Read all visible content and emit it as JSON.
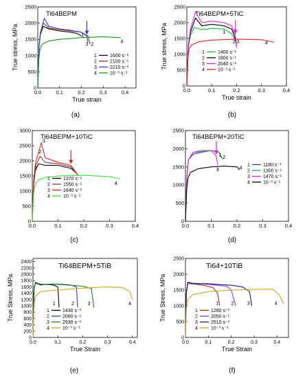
{
  "chart_data": [
    {
      "panel_label": "(a)",
      "type": "line",
      "title": "Ti64BEPM",
      "xlabel": "True strain",
      "ylabel": "True stress, MPa",
      "xlim": [
        0,
        0.45
      ],
      "ylim": [
        0,
        2500
      ],
      "xticks": [
        "0.0",
        "0.1",
        "0.2",
        "0.3",
        "0.4"
      ],
      "yticks": [
        "0",
        "500",
        "1000",
        "1500",
        "2000",
        "2500"
      ],
      "legend_position": "center-right",
      "arrow_color": "#2a3fd6",
      "series": [
        {
          "id": "1",
          "name": "1600 s⁻¹",
          "color": "#000000",
          "x": [
            0,
            0.006,
            0.012,
            0.025,
            0.05,
            0.1,
            0.15,
            0.18,
            0.2
          ],
          "y": [
            0,
            1300,
            1650,
            1900,
            1820,
            1760,
            1720,
            1680,
            1600
          ]
        },
        {
          "id": "2",
          "name": "2100 s⁻¹",
          "color": "#8b3a1a",
          "x": [
            0,
            0.006,
            0.012,
            0.025,
            0.05,
            0.1,
            0.15,
            0.2,
            0.23,
            0.24
          ],
          "y": [
            0,
            1300,
            1700,
            2000,
            1850,
            1800,
            1760,
            1720,
            1600,
            1350
          ]
        },
        {
          "id": "3",
          "name": "2210 s⁻¹",
          "color": "#2a3fd6",
          "x": [
            0,
            0.006,
            0.012,
            0.03,
            0.05,
            0.1,
            0.15,
            0.2,
            0.225,
            0.23
          ],
          "y": [
            0,
            1300,
            1700,
            2150,
            1900,
            1820,
            1780,
            1720,
            1600,
            1400
          ]
        },
        {
          "id": "4",
          "name": "10⁻³ s⁻¹",
          "color": "#1a9a1a",
          "x": [
            0,
            0.005,
            0.01,
            0.02,
            0.05,
            0.1,
            0.2,
            0.3,
            0.38
          ],
          "y": [
            0,
            900,
            1200,
            1350,
            1450,
            1500,
            1550,
            1580,
            1550
          ]
        }
      ],
      "labels": [
        {
          "text": "1",
          "x": 0.205,
          "y": 1580
        },
        {
          "text": "3",
          "x": 0.225,
          "y": 1300
        },
        {
          "text": "2",
          "x": 0.25,
          "y": 1300
        },
        {
          "text": "4",
          "x": 0.385,
          "y": 1390
        }
      ]
    },
    {
      "panel_label": "(b)",
      "type": "line",
      "title": "Ti64BEPM+5TiC",
      "xlabel": "True strain",
      "ylabel": "True stress, MPa",
      "xlim": [
        0,
        0.4
      ],
      "ylim": [
        0,
        2500
      ],
      "xticks": [
        "0.0",
        "0.1",
        "0.2",
        "0.3",
        "0.4"
      ],
      "yticks": [
        "0",
        "500",
        "1000",
        "1500",
        "2000",
        "2500"
      ],
      "legend_position": "bottom-left",
      "arrow_color": "#e020e0",
      "series": [
        {
          "id": "1",
          "name": "1400 s⁻¹",
          "color": "#10c030",
          "x": [
            0,
            0.006,
            0.015,
            0.03,
            0.06,
            0.1,
            0.15,
            0.18,
            0.19
          ],
          "y": [
            0,
            1200,
            1600,
            1850,
            1780,
            1820,
            1800,
            1650,
            1500
          ]
        },
        {
          "id": "2",
          "name": "1800 s⁻¹",
          "color": "#000000",
          "x": [
            0,
            0.006,
            0.015,
            0.035,
            0.06,
            0.1,
            0.15,
            0.18,
            0.19,
            0.2
          ],
          "y": [
            0,
            1300,
            1700,
            2150,
            1900,
            1950,
            1900,
            1800,
            1600,
            1300
          ]
        },
        {
          "id": "3",
          "name": "2040 s⁻¹",
          "color": "#e020e0",
          "x": [
            0,
            0.006,
            0.015,
            0.035,
            0.06,
            0.1,
            0.15,
            0.18,
            0.195,
            0.2
          ],
          "y": [
            0,
            1300,
            1800,
            2350,
            2000,
            2050,
            2000,
            1900,
            1600,
            1200
          ]
        },
        {
          "id": "4",
          "name": "10⁻³ s⁻¹",
          "color": "#e02020",
          "x": [
            0,
            0.005,
            0.01,
            0.02,
            0.05,
            0.1,
            0.2,
            0.3,
            0.35
          ],
          "y": [
            0,
            900,
            1200,
            1300,
            1400,
            1450,
            1480,
            1460,
            1380
          ]
        }
      ],
      "labels": [
        {
          "text": "1",
          "x": 0.15,
          "y": 1650
        },
        {
          "text": "2",
          "x": 0.19,
          "y": 1350
        },
        {
          "text": "3",
          "x": 0.205,
          "y": 1350
        },
        {
          "text": "4",
          "x": 0.32,
          "y": 1310
        }
      ]
    },
    {
      "panel_label": "(c)",
      "type": "line",
      "title": "Ti64BEPM+10TiC",
      "xlabel": "",
      "ylabel": "",
      "xlim": [
        0,
        0.4
      ],
      "ylim": [
        0,
        3000
      ],
      "xticks": [
        "0.0",
        "0.1",
        "0.2",
        "0.3",
        "0.4"
      ],
      "yticks": [
        "0",
        "500",
        "1000",
        "1500",
        "2000",
        "2500",
        "3000"
      ],
      "legend_position": "bottom-left",
      "arrow_color": "#e02020",
      "series": [
        {
          "id": "1",
          "name": "1370 s⁻¹",
          "color": "#000000",
          "x": [
            0,
            0.005,
            0.012,
            0.025,
            0.05,
            0.1,
            0.15,
            0.17
          ],
          "y": [
            0,
            1200,
            1700,
            1900,
            1850,
            1850,
            1750,
            1600
          ]
        },
        {
          "id": "2",
          "name": "1550 s⁻¹",
          "color": "#8b4030",
          "x": [
            0,
            0.005,
            0.012,
            0.03,
            0.05,
            0.1,
            0.15,
            0.175
          ],
          "y": [
            0,
            1300,
            1800,
            2150,
            1950,
            1900,
            1800,
            1550
          ]
        },
        {
          "id": "3",
          "name": "1640 s⁻¹",
          "color": "#e02020",
          "x": [
            0,
            0.005,
            0.012,
            0.035,
            0.05,
            0.1,
            0.15,
            0.18
          ],
          "y": [
            0,
            1300,
            1900,
            2600,
            2100,
            1950,
            1850,
            1500
          ]
        },
        {
          "id": "4",
          "name": "10⁻³ s⁻¹",
          "color": "#30e030",
          "x": [
            0,
            0.005,
            0.01,
            0.02,
            0.05,
            0.1,
            0.2,
            0.3,
            0.34
          ],
          "y": [
            0,
            900,
            1200,
            1350,
            1450,
            1500,
            1520,
            1480,
            1400
          ]
        }
      ],
      "labels": [
        {
          "text": "1",
          "x": 0.015,
          "y": 1700
        },
        {
          "text": "2",
          "x": 0.03,
          "y": 2250
        },
        {
          "text": "3",
          "x": 0.045,
          "y": 2600
        },
        {
          "text": "4",
          "x": 0.325,
          "y": 1200
        }
      ]
    },
    {
      "panel_label": "(d)",
      "type": "line",
      "title": "Ti64BEPM+20TiC",
      "xlabel": "",
      "ylabel": "",
      "xlim": [
        0,
        0.4
      ],
      "ylim": [
        0,
        2500
      ],
      "xticks": [
        "0.0",
        "0.1",
        "0.2",
        "0.3",
        "0.4"
      ],
      "yticks": [
        "0",
        "500",
        "1000",
        "1500",
        "2000",
        "2500"
      ],
      "legend_position": "center-right",
      "arrow_color": "#e020e0",
      "series": [
        {
          "id": "1",
          "name": "1180 s⁻¹",
          "color": "#2a3fd6",
          "x": [
            0,
            0.005,
            0.012,
            0.03,
            0.06,
            0.1,
            0.13,
            0.14
          ],
          "y": [
            0,
            1200,
            1700,
            1850,
            1900,
            1950,
            1900,
            1750
          ]
        },
        {
          "id": "2",
          "name": "1300 s⁻¹",
          "color": "#20b040",
          "x": [
            0,
            0.005,
            0.012,
            0.03,
            0.06,
            0.1,
            0.13,
            0.145
          ],
          "y": [
            0,
            1200,
            1700,
            1900,
            1920,
            1950,
            1900,
            1700
          ]
        },
        {
          "id": "3",
          "name": "1470 s⁻¹",
          "color": "#e020e0",
          "x": [
            0,
            0.005,
            0.012,
            0.03,
            0.06,
            0.1,
            0.12,
            0.125
          ],
          "y": [
            0,
            1200,
            1700,
            1900,
            1950,
            1950,
            1800,
            1550
          ]
        },
        {
          "id": "4",
          "name": "10⁻³ s⁻¹",
          "color": "#000000",
          "x": [
            0,
            0.005,
            0.01,
            0.02,
            0.05,
            0.1,
            0.15,
            0.2,
            0.21
          ],
          "y": [
            0,
            900,
            1200,
            1350,
            1450,
            1500,
            1520,
            1500,
            1420
          ]
        }
      ],
      "labels": [
        {
          "text": "1",
          "x": 0.135,
          "y": 1780
        },
        {
          "text": "2",
          "x": 0.15,
          "y": 1720
        },
        {
          "text": "3",
          "x": 0.125,
          "y": 1380
        },
        {
          "text": "4",
          "x": 0.215,
          "y": 1430
        }
      ]
    },
    {
      "panel_label": "(e)",
      "type": "line",
      "title": "Ti64BEPM+5TiB",
      "xlabel": "True Strain",
      "ylabel": "True Stress, MPa",
      "xlim": [
        0,
        0.42
      ],
      "ylim": [
        0,
        2500
      ],
      "xticks": [
        "0.0",
        "0.1",
        "0.2",
        "0.3",
        "0.4"
      ],
      "yticks": [
        "0",
        "200",
        "400",
        "600",
        "800",
        "1000",
        "1200",
        "1400",
        "1600",
        "1800",
        "2000",
        "2200",
        "2400"
      ],
      "legend_position": "bottom-left",
      "series": [
        {
          "id": "1",
          "name": "1430 s⁻¹",
          "color": "#000000",
          "x": [
            0,
            0.004,
            0.01,
            0.03,
            0.05,
            0.08,
            0.1,
            0.105
          ],
          "y": [
            0,
            1500,
            1720,
            1660,
            1680,
            1660,
            1600,
            950
          ]
        },
        {
          "id": "2",
          "name": "2060 s⁻¹",
          "color": "#2a3fd6",
          "x": [
            0,
            0.004,
            0.01,
            0.03,
            0.1,
            0.15,
            0.175,
            0.18
          ],
          "y": [
            0,
            1500,
            1720,
            1680,
            1690,
            1660,
            1600,
            950
          ]
        },
        {
          "id": "3",
          "name": "2930 s⁻¹",
          "color": "#1a7a1a",
          "x": [
            0,
            0.004,
            0.01,
            0.03,
            0.1,
            0.2,
            0.235,
            0.245
          ],
          "y": [
            0,
            1500,
            1750,
            1680,
            1680,
            1620,
            1550,
            950
          ]
        },
        {
          "id": "4",
          "name": "10⁻³ s⁻¹",
          "color": "#d4a020",
          "x": [
            0,
            0.004,
            0.01,
            0.03,
            0.1,
            0.2,
            0.3,
            0.36,
            0.39,
            0.4
          ],
          "y": [
            0,
            1000,
            1300,
            1450,
            1500,
            1560,
            1600,
            1580,
            1450,
            1200
          ]
        }
      ],
      "labels": [
        {
          "text": "1",
          "x": 0.085,
          "y": 1020
        },
        {
          "text": "2",
          "x": 0.16,
          "y": 1020
        },
        {
          "text": "3",
          "x": 0.225,
          "y": 1020
        },
        {
          "text": "4",
          "x": 0.39,
          "y": 1020
        }
      ]
    },
    {
      "panel_label": "(f)",
      "type": "line",
      "title": "Ti64+10TiB",
      "xlabel": "True Strain",
      "ylabel": "True Stress, MPa",
      "xlim": [
        0,
        0.45
      ],
      "ylim": [
        0,
        2500
      ],
      "xticks": [
        "0.0",
        "0.1",
        "0.2",
        "0.3",
        "0.4"
      ],
      "yticks": [
        "0",
        "500",
        "1000",
        "1500",
        "2000",
        "2500"
      ],
      "legend_position": "bottom-left",
      "series": [
        {
          "id": "1",
          "name": "1280 s⁻¹",
          "color": "#8b3a1a",
          "x": [
            0,
            0.004,
            0.01,
            0.03,
            0.08,
            0.12,
            0.14,
            0.15
          ],
          "y": [
            0,
            1400,
            1700,
            1700,
            1650,
            1580,
            1400,
            1000
          ]
        },
        {
          "id": "2",
          "name": "2050 s⁻¹",
          "color": "#9030e0",
          "x": [
            0,
            0.004,
            0.01,
            0.03,
            0.1,
            0.18,
            0.2,
            0.22
          ],
          "y": [
            0,
            1400,
            1750,
            1720,
            1680,
            1620,
            1500,
            1000
          ]
        },
        {
          "id": "3",
          "name": "2510 s⁻¹",
          "color": "#1a1a6a",
          "x": [
            0,
            0.004,
            0.01,
            0.03,
            0.1,
            0.2,
            0.25,
            0.28,
            0.29
          ],
          "y": [
            0,
            1400,
            1750,
            1700,
            1700,
            1650,
            1600,
            1450,
            1000
          ]
        },
        {
          "id": "4",
          "name": "10⁻³ s⁻¹",
          "color": "#d4a020",
          "x": [
            0,
            0.004,
            0.01,
            0.03,
            0.1,
            0.2,
            0.3,
            0.38,
            0.41,
            0.43
          ],
          "y": [
            0,
            900,
            1200,
            1350,
            1450,
            1500,
            1520,
            1530,
            1350,
            1050
          ]
        }
      ],
      "labels": [
        {
          "text": "1",
          "x": 0.14,
          "y": 1030
        },
        {
          "text": "2",
          "x": 0.205,
          "y": 1030
        },
        {
          "text": "3",
          "x": 0.275,
          "y": 1030
        },
        {
          "text": "4",
          "x": 0.395,
          "y": 1030
        }
      ]
    }
  ]
}
